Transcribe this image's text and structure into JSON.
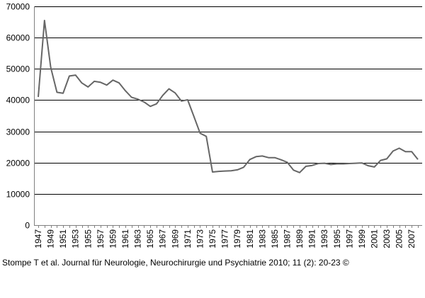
{
  "chart_data": {
    "type": "line",
    "title": "",
    "xlabel": "",
    "ylabel": "",
    "ylim": [
      0,
      70000
    ],
    "y_ticks": [
      0,
      10000,
      20000,
      30000,
      40000,
      50000,
      60000,
      70000
    ],
    "y_tick_labels": [
      "0",
      "10000",
      "20000",
      "30000",
      "40000",
      "50000",
      "60000",
      "70000"
    ],
    "x_tick_labels": [
      "1947",
      "1949",
      "1951",
      "1953",
      "1955",
      "1957",
      "1959",
      "1961",
      "1963",
      "1965",
      "1967",
      "1969",
      "1971",
      "1973",
      "1975",
      "1977",
      "1979",
      "1981",
      "1983",
      "1985",
      "1987",
      "1989",
      "1991",
      "1993",
      "1995",
      "1997",
      "1999",
      "2001",
      "2003",
      "2005",
      "2007"
    ],
    "grid": "horizontal",
    "legend": "none",
    "colors": {
      "line": "#666666",
      "grid": "#000000",
      "axis": "#808080"
    },
    "x": [
      1947,
      1948,
      1949,
      1950,
      1951,
      1952,
      1953,
      1954,
      1955,
      1956,
      1957,
      1958,
      1959,
      1960,
      1961,
      1962,
      1963,
      1964,
      1965,
      1966,
      1967,
      1968,
      1969,
      1970,
      1971,
      1972,
      1973,
      1974,
      1975,
      1976,
      1977,
      1978,
      1979,
      1980,
      1981,
      1982,
      1983,
      1984,
      1985,
      1986,
      1987,
      1988,
      1989,
      1990,
      1991,
      1992,
      1993,
      1994,
      1995,
      1996,
      1997,
      1998,
      1999,
      2000,
      2001,
      2002,
      2003,
      2004,
      2005,
      2006,
      2007,
      2008
    ],
    "series": [
      {
        "values": [
          41000,
          65500,
          50500,
          42500,
          42200,
          47700,
          48000,
          45500,
          44200,
          46000,
          45700,
          44800,
          46400,
          45500,
          43000,
          40900,
          40300,
          39400,
          38000,
          38800,
          41500,
          43600,
          42300,
          39700,
          40100,
          34800,
          29400,
          28400,
          17000,
          17200,
          17300,
          17400,
          17700,
          18500,
          21000,
          21900,
          22100,
          21600,
          21600,
          20900,
          20100,
          17600,
          16800,
          18800,
          19100,
          19700,
          19800,
          19400,
          19600,
          19600,
          19700,
          19800,
          19900,
          19000,
          18600,
          20700,
          21200,
          23700,
          24600,
          23500,
          23500,
          21000
        ]
      }
    ]
  },
  "source_note": "Stompe T et al. Journal für Neurologie, Neurochirurgie und Psychiatrie 2010; 11 (2): 20-23 ©"
}
